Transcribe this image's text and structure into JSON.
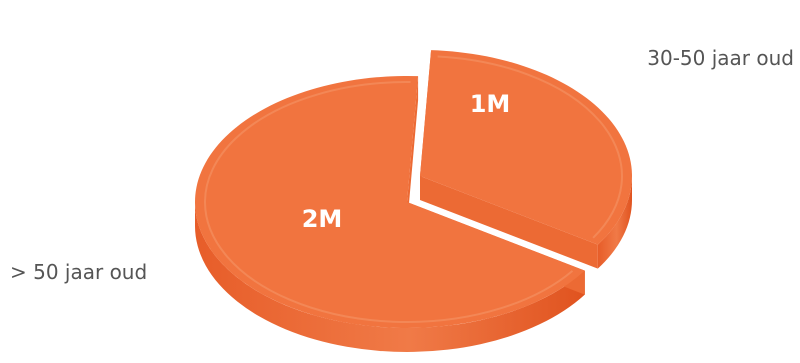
{
  "chart_data": {
    "type": "pie",
    "categories": [
      "30-50 jaar oud",
      "> 50 jaar oud"
    ],
    "values": [
      1,
      2
    ],
    "value_labels": [
      "1M",
      "2M"
    ],
    "style": "3d-exploded",
    "legend": "labels-beside-slices"
  },
  "colors": {
    "top": "#f1743f",
    "side": "#e8612d",
    "text": "#555555"
  }
}
